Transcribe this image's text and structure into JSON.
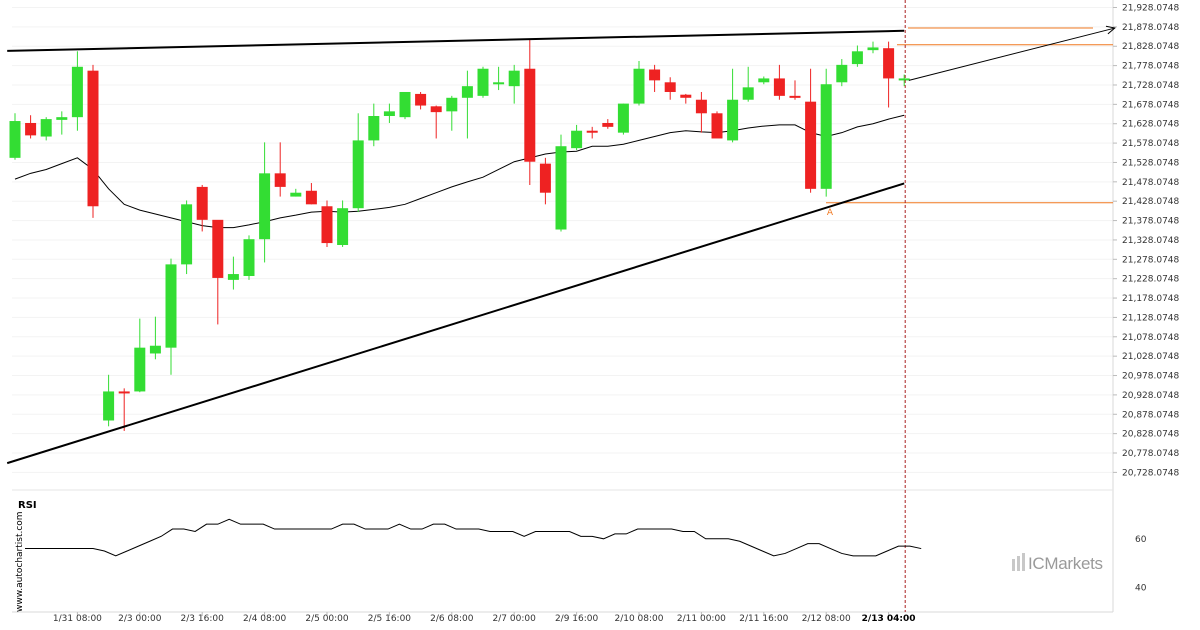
{
  "chart_data": {
    "type": "candlestick",
    "y_axis_labels": [
      "21,928.0748",
      "21,878.0748",
      "21,828.0748",
      "21,778.0748",
      "21,728.0748",
      "21,678.0748",
      "21,628.0748",
      "21,578.0748",
      "21,528.0748",
      "21,478.0748",
      "21,428.0748",
      "21,378.0748",
      "21,328.0748",
      "21,278.0748",
      "21,228.0748",
      "21,178.0748",
      "21,128.0748",
      "21,078.0748",
      "21,028.0748",
      "20,978.0748",
      "20,928.0748",
      "20,878.0748",
      "20,828.0748",
      "20,778.0748",
      "20,728.0748"
    ],
    "y_axis_values": [
      21928.0748,
      21878.0748,
      21828.0748,
      21778.0748,
      21728.0748,
      21678.0748,
      21628.0748,
      21578.0748,
      21528.0748,
      21478.0748,
      21428.0748,
      21378.0748,
      21328.0748,
      21278.0748,
      21228.0748,
      21178.0748,
      21128.0748,
      21078.0748,
      21028.0748,
      20978.0748,
      20928.0748,
      20878.0748,
      20828.0748,
      20778.0748,
      20728.0748
    ],
    "ylim": [
      20710,
      21940
    ],
    "x_labels": [
      "1/31 08:00",
      "2/3 00:00",
      "2/3 16:00",
      "2/4 08:00",
      "2/5 00:00",
      "2/5 16:00",
      "2/6 08:00",
      "2/7 00:00",
      "2/9 16:00",
      "2/10 08:00",
      "2/11 00:00",
      "2/11 16:00",
      "2/12 08:00",
      "2/13 04:00"
    ],
    "x_label_idx": [
      4,
      8,
      12,
      16,
      20,
      24,
      28,
      32,
      36,
      40,
      44,
      48,
      52,
      56
    ],
    "highlight_x_label": "2/13 04:00",
    "candles": [
      {
        "o": 21540,
        "h": 21655,
        "l": 21535,
        "c": 21635
      },
      {
        "o": 21630,
        "h": 21650,
        "l": 21590,
        "c": 21598
      },
      {
        "o": 21595,
        "h": 21645,
        "l": 21585,
        "c": 21640
      },
      {
        "o": 21638,
        "h": 21660,
        "l": 21600,
        "c": 21645
      },
      {
        "o": 21645,
        "h": 21815,
        "l": 21610,
        "c": 21775
      },
      {
        "o": 21765,
        "h": 21780,
        "l": 21385,
        "c": 21415
      },
      {
        "o": 20862,
        "h": 20980,
        "l": 20847,
        "c": 20937
      },
      {
        "o": 20937,
        "h": 20945,
        "l": 20835,
        "c": 20936
      },
      {
        "o": 20937,
        "h": 21125,
        "l": 20935,
        "c": 21050
      },
      {
        "o": 21035,
        "h": 21130,
        "l": 21020,
        "c": 21055
      },
      {
        "o": 21050,
        "h": 21280,
        "l": 20980,
        "c": 21265
      },
      {
        "o": 21265,
        "h": 21430,
        "l": 21240,
        "c": 21420
      },
      {
        "o": 21465,
        "h": 21470,
        "l": 21350,
        "c": 21380
      },
      {
        "o": 21380,
        "h": 21375,
        "l": 21110,
        "c": 21230
      },
      {
        "o": 21225,
        "h": 21285,
        "l": 21200,
        "c": 21240
      },
      {
        "o": 21235,
        "h": 21340,
        "l": 21225,
        "c": 21330
      },
      {
        "o": 21330,
        "h": 21580,
        "l": 21270,
        "c": 21500
      },
      {
        "o": 21500,
        "h": 21580,
        "l": 21440,
        "c": 21465
      },
      {
        "o": 21440,
        "h": 21460,
        "l": 21440,
        "c": 21450
      },
      {
        "o": 21455,
        "h": 21475,
        "l": 21420,
        "c": 21420
      },
      {
        "o": 21415,
        "h": 21430,
        "l": 21310,
        "c": 21320
      },
      {
        "o": 21315,
        "h": 21430,
        "l": 21310,
        "c": 21410
      },
      {
        "o": 21410,
        "h": 21655,
        "l": 21400,
        "c": 21585
      },
      {
        "o": 21585,
        "h": 21680,
        "l": 21570,
        "c": 21648
      },
      {
        "o": 21648,
        "h": 21680,
        "l": 21630,
        "c": 21660
      },
      {
        "o": 21645,
        "h": 21710,
        "l": 21640,
        "c": 21710
      },
      {
        "o": 21705,
        "h": 21710,
        "l": 21665,
        "c": 21675
      },
      {
        "o": 21673,
        "h": 21675,
        "l": 21590,
        "c": 21658
      },
      {
        "o": 21660,
        "h": 21700,
        "l": 21610,
        "c": 21695
      },
      {
        "o": 21695,
        "h": 21765,
        "l": 21590,
        "c": 21725
      },
      {
        "o": 21700,
        "h": 21775,
        "l": 21695,
        "c": 21770
      },
      {
        "o": 21730,
        "h": 21775,
        "l": 21715,
        "c": 21735
      },
      {
        "o": 21725,
        "h": 21780,
        "l": 21680,
        "c": 21765
      },
      {
        "o": 21770,
        "h": 21845,
        "l": 21470,
        "c": 21530
      },
      {
        "o": 21525,
        "h": 21540,
        "l": 21420,
        "c": 21450
      },
      {
        "o": 21355,
        "h": 21600,
        "l": 21350,
        "c": 21570
      },
      {
        "o": 21565,
        "h": 21625,
        "l": 21560,
        "c": 21610
      },
      {
        "o": 21610,
        "h": 21620,
        "l": 21590,
        "c": 21605
      },
      {
        "o": 21630,
        "h": 21640,
        "l": 21615,
        "c": 21620
      },
      {
        "o": 21605,
        "h": 21680,
        "l": 21600,
        "c": 21680
      },
      {
        "o": 21680,
        "h": 21790,
        "l": 21675,
        "c": 21770
      },
      {
        "o": 21768,
        "h": 21780,
        "l": 21710,
        "c": 21740
      },
      {
        "o": 21735,
        "h": 21748,
        "l": 21690,
        "c": 21710
      },
      {
        "o": 21703,
        "h": 21705,
        "l": 21680,
        "c": 21695
      },
      {
        "o": 21690,
        "h": 21710,
        "l": 21605,
        "c": 21655
      },
      {
        "o": 21655,
        "h": 21660,
        "l": 21595,
        "c": 21590
      },
      {
        "o": 21585,
        "h": 21770,
        "l": 21580,
        "c": 21690
      },
      {
        "o": 21690,
        "h": 21775,
        "l": 21685,
        "c": 21722
      },
      {
        "o": 21735,
        "h": 21750,
        "l": 21730,
        "c": 21745
      },
      {
        "o": 21745,
        "h": 21780,
        "l": 21690,
        "c": 21700
      },
      {
        "o": 21700,
        "h": 21740,
        "l": 21690,
        "c": 21695
      },
      {
        "o": 21685,
        "h": 21770,
        "l": 21450,
        "c": 21460
      },
      {
        "o": 21460,
        "h": 21770,
        "l": 21440,
        "c": 21730
      },
      {
        "o": 21735,
        "h": 21795,
        "l": 21725,
        "c": 21780
      },
      {
        "o": 21782,
        "h": 21830,
        "l": 21775,
        "c": 21815
      },
      {
        "o": 21818,
        "h": 21840,
        "l": 21810,
        "c": 21825
      },
      {
        "o": 21823,
        "h": 21840,
        "l": 21670,
        "c": 21745
      },
      {
        "o": 21742,
        "h": 21755,
        "l": 21725,
        "c": 21745
      }
    ],
    "moving_average": [
      21485,
      21500,
      21510,
      21525,
      21540,
      21510,
      21460,
      21420,
      21405,
      21395,
      21385,
      21375,
      21365,
      21360,
      21360,
      21367,
      21375,
      21385,
      21392,
      21400,
      21402,
      21400,
      21402,
      21407,
      21412,
      21420,
      21435,
      21450,
      21465,
      21478,
      21490,
      21510,
      21530,
      21540,
      21550,
      21555,
      21557,
      21570,
      21570,
      21575,
      21585,
      21595,
      21605,
      21610,
      21607,
      21605,
      21610,
      21617,
      21622,
      21625,
      21625,
      21605,
      21595,
      21605,
      21620,
      21628,
      21640,
      21650
    ],
    "rsi": {
      "title": "RSI",
      "axis_labels": [
        "60",
        "40"
      ],
      "axis_values": [
        60,
        40
      ],
      "ylim": [
        30,
        80
      ],
      "values": [
        56,
        56,
        56,
        56,
        56,
        56,
        56,
        55,
        53,
        55,
        57,
        59,
        61,
        64,
        64,
        63,
        66,
        66,
        68,
        66,
        66,
        66,
        64,
        64,
        64,
        64,
        64,
        64,
        66,
        66,
        64,
        64,
        64,
        66,
        64,
        64,
        66,
        66,
        64,
        64,
        64,
        63,
        63,
        63,
        61,
        63,
        63,
        63,
        63,
        61,
        61,
        60,
        62,
        62,
        64,
        64,
        64,
        64,
        63,
        63,
        60,
        60,
        60,
        59,
        57,
        55,
        53,
        54,
        56,
        58,
        58,
        56,
        54,
        53,
        53,
        53,
        55,
        57,
        57,
        56
      ]
    },
    "trend_lines": {
      "upper": [
        [
          -0.5,
          21816
        ],
        [
          57,
          21868
        ]
      ],
      "lower": [
        [
          -0.5,
          20752
        ],
        [
          57,
          21474
        ]
      ],
      "projection_arrow": [
        [
          57.3,
          21740
        ],
        [
          70.5,
          21875
        ]
      ]
    },
    "levels": {
      "upper_target": 21875,
      "breakout_level": 21832,
      "support_level": 21424
    },
    "annotations": [
      "A"
    ],
    "current_time_index": 57,
    "colors": {
      "bull": "#33dd33",
      "bear": "#ee2222",
      "trend": "#000000",
      "level": "#f07820",
      "ma": "#000000",
      "rsi": "#000000",
      "cursor": "#aa2222"
    }
  },
  "watermark": {
    "text": "www.autochartist.com"
  },
  "brand": {
    "text": "ICMarkets"
  }
}
